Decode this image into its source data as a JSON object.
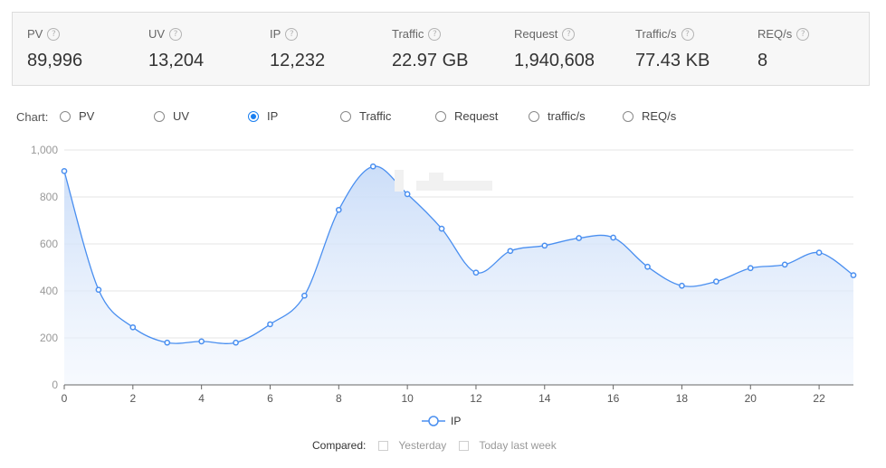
{
  "stats": [
    {
      "label": "PV",
      "value": "89,996"
    },
    {
      "label": "UV",
      "value": "13,204"
    },
    {
      "label": "IP",
      "value": "12,232"
    },
    {
      "label": "Traffic",
      "value": "22.97 GB"
    },
    {
      "label": "Request",
      "value": "1,940,608"
    },
    {
      "label": "Traffic/s",
      "value": "77.43 KB"
    },
    {
      "label": "REQ/s",
      "value": "8"
    }
  ],
  "help_glyph": "?",
  "chart_selector": {
    "label": "Chart:",
    "options": [
      "PV",
      "UV",
      "IP",
      "Traffic",
      "Request",
      "traffic/s",
      "REQ/s"
    ],
    "selected": "IP"
  },
  "legend": {
    "label": "IP"
  },
  "compare": {
    "label": "Compared:",
    "options": [
      "Yesterday",
      "Today last week"
    ]
  },
  "colors": {
    "line": "#4a8ff0",
    "accent": "#1a7ff0",
    "grid": "#e6e6e6",
    "axis": "#666666"
  },
  "chart_data": {
    "type": "area",
    "x": [
      0,
      1,
      2,
      3,
      4,
      5,
      6,
      7,
      8,
      9,
      10,
      11,
      12,
      13,
      14,
      15,
      16,
      17,
      18,
      19,
      20,
      21,
      22,
      23
    ],
    "x_ticks": [
      0,
      2,
      4,
      6,
      8,
      10,
      12,
      14,
      16,
      18,
      20,
      22
    ],
    "series": [
      {
        "name": "IP",
        "values": [
          910,
          405,
          245,
          180,
          185,
          180,
          258,
          380,
          745,
          930,
          812,
          665,
          478,
          570,
          593,
          625,
          627,
          503,
          422,
          440,
          497,
          512,
          563,
          467
        ]
      }
    ],
    "y_ticks": [
      "0",
      "200",
      "400",
      "600",
      "800",
      "1,000"
    ],
    "ylim": [
      0,
      1000
    ],
    "xlim": [
      0,
      23
    ],
    "grid": true
  }
}
